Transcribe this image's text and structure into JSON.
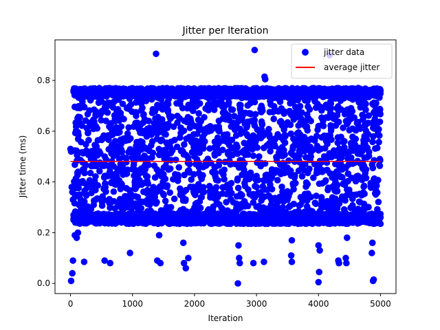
{
  "chart_data": {
    "type": "scatter",
    "title": "Jitter per Iteration",
    "xlabel": "Iteration",
    "ylabel": "Jitter time (ms)",
    "xlim": [
      -250,
      5250
    ],
    "ylim": [
      -0.04,
      0.96
    ],
    "x_ticks": [
      0,
      1000,
      2000,
      3000,
      4000,
      5000
    ],
    "y_ticks": [
      0.0,
      0.2,
      0.4,
      0.6,
      0.8
    ],
    "x_tick_labels": [
      "0",
      "1000",
      "2000",
      "3000",
      "4000",
      "5000"
    ],
    "y_tick_labels": [
      "0.0",
      "0.2",
      "0.4",
      "0.6",
      "0.8"
    ],
    "grid": false,
    "legend_position": "top-right",
    "series": [
      {
        "name": "jitter data",
        "kind": "scatter",
        "color": "#0000ff",
        "points": [
          [
            0,
            0.53
          ],
          [
            10,
            0.52
          ],
          [
            20,
            0.38
          ],
          [
            30,
            0.36
          ],
          [
            40,
            0.33
          ],
          [
            50,
            0.27
          ],
          [
            60,
            0.25
          ],
          [
            10,
            0.01
          ],
          [
            30,
            0.04
          ],
          [
            40,
            0.09
          ],
          [
            70,
            0.19
          ],
          [
            100,
            0.18
          ],
          [
            120,
            0.2
          ],
          [
            220,
            0.085
          ],
          [
            550,
            0.09
          ],
          [
            640,
            0.08
          ],
          [
            960,
            0.12
          ],
          [
            1400,
            0.09
          ],
          [
            1450,
            0.08
          ],
          [
            1430,
            0.19
          ],
          [
            1820,
            0.16
          ],
          [
            1830,
            0.08
          ],
          [
            1860,
            0.06
          ],
          [
            1900,
            0.1
          ],
          [
            2700,
            0.0
          ],
          [
            2720,
            0.1
          ],
          [
            2730,
            0.08
          ],
          [
            2710,
            0.15
          ],
          [
            2950,
            0.08
          ],
          [
            3120,
            0.085
          ],
          [
            3570,
            0.085
          ],
          [
            3560,
            0.11
          ],
          [
            3570,
            0.17
          ],
          [
            4000,
            0.005
          ],
          [
            4010,
            0.045
          ],
          [
            4000,
            0.15
          ],
          [
            4020,
            0.13
          ],
          [
            4320,
            0.09
          ],
          [
            4330,
            0.08
          ],
          [
            4440,
            0.1
          ],
          [
            4450,
            0.08
          ],
          [
            4460,
            0.18
          ],
          [
            4860,
            0.12
          ],
          [
            4870,
            0.16
          ],
          [
            4880,
            0.01
          ],
          [
            4890,
            0.015
          ],
          [
            1380,
            0.905
          ],
          [
            2970,
            0.92
          ],
          [
            3130,
            0.815
          ],
          [
            3140,
            0.805
          ],
          [
            4180,
            0.9
          ],
          [
            50,
            0.76
          ],
          [
            120,
            0.75
          ],
          [
            200,
            0.74
          ],
          [
            350,
            0.76
          ],
          [
            500,
            0.75
          ],
          [
            700,
            0.76
          ],
          [
            900,
            0.75
          ],
          [
            1100,
            0.76
          ],
          [
            1300,
            0.75
          ],
          [
            1500,
            0.76
          ],
          [
            1700,
            0.75
          ],
          [
            1900,
            0.76
          ],
          [
            2100,
            0.75
          ],
          [
            2300,
            0.76
          ],
          [
            2500,
            0.75
          ],
          [
            2700,
            0.76
          ],
          [
            2900,
            0.75
          ],
          [
            3100,
            0.76
          ],
          [
            3300,
            0.75
          ],
          [
            3500,
            0.76
          ],
          [
            3700,
            0.75
          ],
          [
            3900,
            0.76
          ],
          [
            4100,
            0.75
          ],
          [
            4300,
            0.76
          ],
          [
            4500,
            0.75
          ],
          [
            4700,
            0.76
          ],
          [
            4900,
            0.75
          ],
          [
            5000,
            0.76
          ],
          [
            50,
            0.25
          ],
          [
            150,
            0.24
          ],
          [
            250,
            0.26
          ],
          [
            400,
            0.25
          ],
          [
            600,
            0.24
          ],
          [
            800,
            0.26
          ],
          [
            1000,
            0.25
          ],
          [
            1200,
            0.24
          ],
          [
            1400,
            0.26
          ],
          [
            1600,
            0.25
          ],
          [
            1800,
            0.24
          ],
          [
            2000,
            0.26
          ],
          [
            2200,
            0.25
          ],
          [
            2400,
            0.24
          ],
          [
            2600,
            0.26
          ],
          [
            2800,
            0.25
          ],
          [
            3000,
            0.24
          ],
          [
            3200,
            0.26
          ],
          [
            3400,
            0.25
          ],
          [
            3600,
            0.24
          ],
          [
            3800,
            0.26
          ],
          [
            4000,
            0.25
          ],
          [
            4200,
            0.24
          ],
          [
            4400,
            0.26
          ],
          [
            4600,
            0.25
          ],
          [
            4800,
            0.24
          ],
          [
            5000,
            0.26
          ],
          [
            1000,
            0.3
          ],
          [
            1000,
            0.45
          ],
          [
            2000,
            0.5
          ],
          [
            3000,
            0.38
          ],
          [
            4000,
            0.62
          ],
          [
            500,
            0.57
          ],
          [
            1500,
            0.43
          ],
          [
            2500,
            0.67
          ],
          [
            3500,
            0.33
          ],
          [
            4500,
            0.52
          ]
        ],
        "dense_bands": [
          {
            "x_range": [
              50,
              5000
            ],
            "y_range": [
              0.235,
              0.275
            ],
            "count": 1200
          },
          {
            "x_range": [
              50,
              5000
            ],
            "y_range": [
              0.735,
              0.77
            ],
            "count": 1200
          },
          {
            "x_range": [
              50,
              5000
            ],
            "y_range": [
              0.275,
              0.735
            ],
            "count": 1600
          },
          {
            "x_range": [
              1150,
              1900
            ],
            "y_range": [
              0.745,
              0.755
            ],
            "count": 220
          }
        ]
      },
      {
        "name": "average jitter",
        "kind": "line",
        "color": "#ff0000",
        "x": [
          0,
          5000
        ],
        "y": [
          0.481,
          0.481
        ]
      }
    ]
  }
}
